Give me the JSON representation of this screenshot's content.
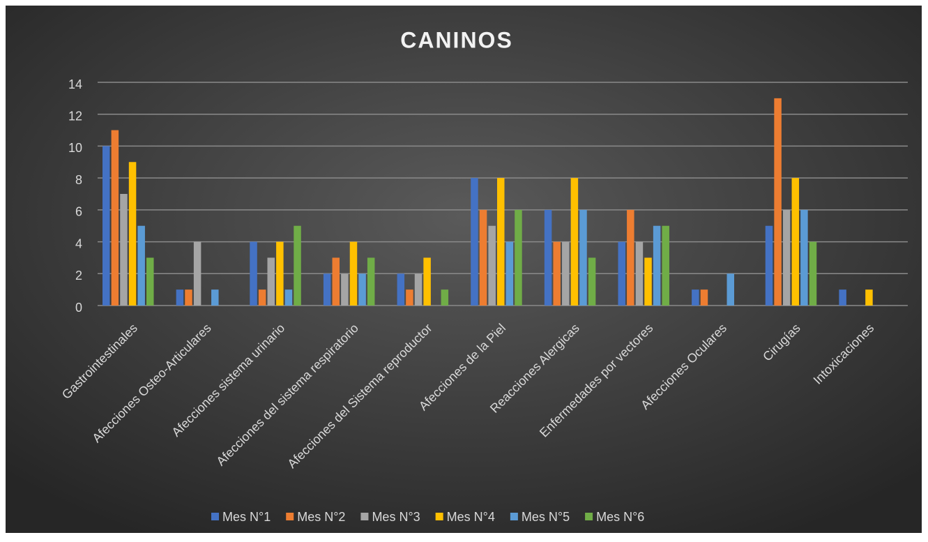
{
  "chart_data": {
    "type": "bar",
    "title": "CANINOS",
    "categories": [
      "Gastrointestinales",
      "Afecciones Osteo-Articulares",
      "Afecciones sistema urinario",
      "Afecciones del sistema respiratorio",
      "Afecciones del Sistema reproductor",
      "Afecciones de la Piel",
      "Reacciones Alergicas",
      "Enfermedades por vectores",
      "Afecciones Oculares",
      "Cirugías",
      "Intoxicaciones"
    ],
    "series": [
      {
        "name": "Mes N°1",
        "color": "#4472c4",
        "values": [
          10,
          1,
          4,
          2,
          2,
          8,
          6,
          4,
          1,
          5,
          1
        ]
      },
      {
        "name": "Mes N°2",
        "color": "#ed7d31",
        "values": [
          11,
          1,
          1,
          3,
          1,
          6,
          4,
          6,
          1,
          13,
          0
        ]
      },
      {
        "name": "Mes N°3",
        "color": "#a5a5a5",
        "values": [
          7,
          4,
          3,
          2,
          2,
          5,
          4,
          4,
          0,
          6,
          0
        ]
      },
      {
        "name": "Mes N°4",
        "color": "#ffc000",
        "values": [
          9,
          0,
          4,
          4,
          3,
          8,
          8,
          3,
          0,
          8,
          1
        ]
      },
      {
        "name": "Mes N°5",
        "color": "#5b9bd5",
        "values": [
          5,
          1,
          1,
          2,
          0,
          4,
          6,
          5,
          2,
          6,
          0
        ]
      },
      {
        "name": "Mes N°6",
        "color": "#70ad47",
        "values": [
          3,
          0,
          5,
          3,
          1,
          6,
          3,
          5,
          0,
          4,
          0
        ]
      }
    ],
    "ylim": [
      0,
      14
    ],
    "yticks": [
      0,
      2,
      4,
      6,
      8,
      10,
      12,
      14
    ],
    "grid": true,
    "legend": "bottom"
  }
}
